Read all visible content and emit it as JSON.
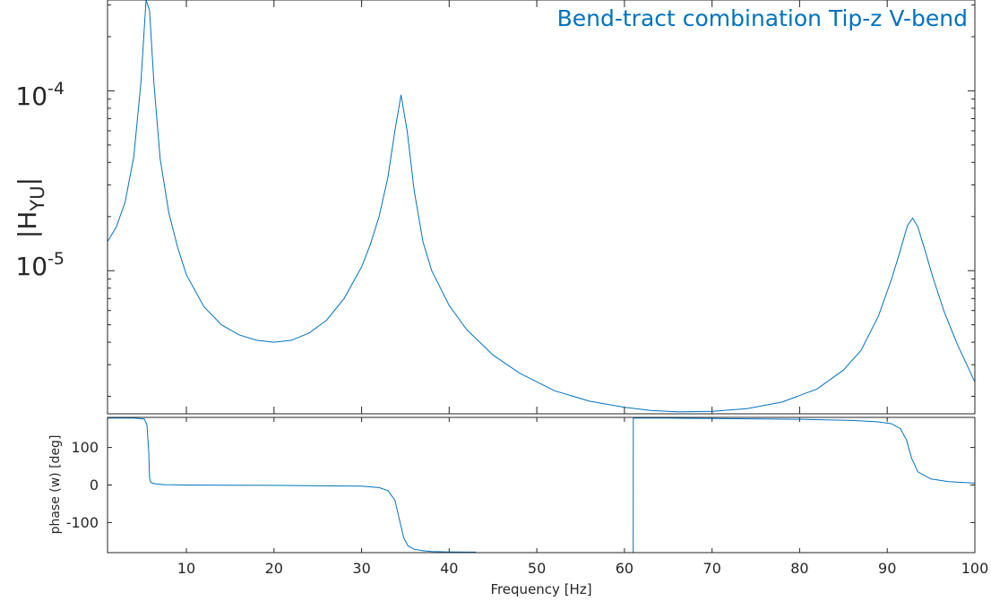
{
  "colors": {
    "series": "#0072bd",
    "axis": "#262626",
    "title": "#0072bd",
    "background": "#ffffff"
  },
  "chart_data": [
    {
      "type": "line",
      "title": "Bend-tract combination Tip-z V-bend",
      "ylabel_main": "|H",
      "ylabel_sub": "YU",
      "ylabel_close": "|",
      "xlim": [
        1,
        100
      ],
      "ylim": [
        1.6e-06,
        0.00032
      ],
      "yscale": "log",
      "grid": false,
      "yticks": [
        {
          "mantissa": "10",
          "exponent": "-4",
          "value": 0.0001
        },
        {
          "mantissa": "10",
          "exponent": "-5",
          "value": 1e-05
        }
      ],
      "series": [
        {
          "x": [
            1,
            2,
            3,
            4,
            4.8,
            5.4,
            5.8,
            6.3,
            7,
            8,
            9,
            10,
            12,
            14,
            16,
            18,
            20,
            22,
            24,
            26,
            28,
            30,
            31,
            32,
            33,
            33.8,
            34.5,
            35.2,
            36,
            37,
            38,
            40,
            42,
            45,
            48,
            52,
            56,
            60,
            63,
            66,
            70,
            74,
            78,
            82,
            85,
            87,
            89,
            90.5,
            91.5,
            92.3,
            92.9,
            93.5,
            94.3,
            95.2,
            96.5,
            98,
            100
          ],
          "y": [
            1.45e-05,
            1.75e-05,
            2.4e-05,
            4.3e-05,
            0.00011,
            0.00032,
            0.00028,
            0.00011,
            4.2e-05,
            2.1e-05,
            1.35e-05,
            9.5e-06,
            6.3e-06,
            5e-06,
            4.4e-06,
            4.1e-06,
            4e-06,
            4.1e-06,
            4.5e-06,
            5.3e-06,
            7e-06,
            1.05e-05,
            1.4e-05,
            2e-05,
            3.3e-05,
            6e-05,
            9.5e-05,
            6e-05,
            2.8e-05,
            1.45e-05,
            1e-05,
            6.4e-06,
            4.7e-06,
            3.4e-06,
            2.7e-06,
            2.15e-06,
            1.88e-06,
            1.74e-06,
            1.67e-06,
            1.64e-06,
            1.65e-06,
            1.71e-06,
            1.86e-06,
            2.2e-06,
            2.8e-06,
            3.6e-06,
            5.6e-06,
            9e-06,
            1.3e-05,
            1.78e-05,
            1.96e-05,
            1.75e-05,
            1.3e-05,
            9.2e-06,
            5.9e-06,
            3.9e-06,
            2.4e-06
          ]
        }
      ]
    },
    {
      "type": "line",
      "xlabel": "Frequency [Hz]",
      "ylabel": "phase (w) [deg]",
      "xlim": [
        1,
        100
      ],
      "ylim": [
        -180,
        180
      ],
      "grid": false,
      "xticks": [
        10,
        20,
        30,
        40,
        50,
        60,
        70,
        80,
        90,
        100
      ],
      "yticks": [
        100,
        0,
        -100
      ],
      "series": [
        {
          "x": [
            1,
            4,
            5.2,
            5.5,
            5.7,
            5.8,
            5.9,
            6.1,
            6.5,
            7.5,
            10,
            20,
            30,
            32,
            33,
            33.8,
            34.3,
            34.8,
            35.3,
            36,
            37,
            38,
            40,
            42,
            43,
            43.01,
            50,
            55,
            60,
            60.7,
            60.71,
            61,
            61.01,
            65,
            70,
            80,
            86,
            89,
            90.5,
            91.5,
            92.2,
            92.8,
            93.5,
            95,
            97,
            100
          ],
          "y": [
            178,
            178,
            176,
            160,
            90,
            20,
            9,
            5,
            3,
            1,
            0,
            -1,
            -3,
            -7,
            -15,
            -40,
            -90,
            -140,
            -162,
            -171,
            -175,
            -177,
            -178,
            -178.5,
            -178.6,
            -180,
            -180,
            -180,
            -180,
            -180,
            -180,
            -180,
            178,
            178,
            177,
            175,
            172,
            168,
            163,
            150,
            120,
            70,
            35,
            16,
            9,
            5
          ]
        }
      ]
    }
  ]
}
